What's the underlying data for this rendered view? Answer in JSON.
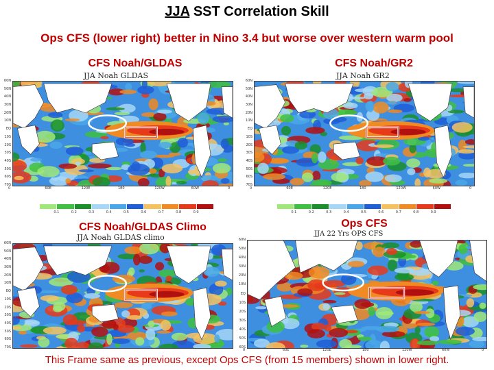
{
  "title_prefix": "JJA",
  "title_rest": " SST Correlation Skill",
  "subtitle": "Ops CFS (lower right) better in Nino 3.4 but worse over western warm pool",
  "footer": "This Frame same as previous, except Ops CFS (from 15 members) shown in lower right.",
  "panels": [
    {
      "label": "CFS Noah/GLDAS",
      "map_title": "JJA Noah GLDAS"
    },
    {
      "label": "CFS Noah/GR2",
      "map_title": "JJA Noah GR2"
    },
    {
      "label": "CFS Noah/GLDAS Climo",
      "map_title": "JJA Noah GLDAS climo"
    },
    {
      "label": "Ops CFS",
      "map_title": "JJA 22 Yrs OPS CFS"
    }
  ],
  "lat_ticks_small": [
    "60N",
    "50N",
    "40N",
    "30N",
    "20N",
    "10N",
    "EQ",
    "10S",
    "20S",
    "30S",
    "40S",
    "50S",
    "60S",
    "70S"
  ],
  "lat_ticks_ops": [
    "60N",
    "50N",
    "40N",
    "30N",
    "20N",
    "10N",
    "EQ",
    "10S",
    "20S",
    "30S",
    "40S",
    "50S",
    "60S"
  ],
  "lon_ticks": [
    "0",
    "60E",
    "120E",
    "180",
    "120W",
    "60W",
    "0"
  ],
  "colorbar_labels": [
    "0.1",
    "0.2",
    "0.3",
    "0.4",
    "0.5",
    "0.6",
    "0.7",
    "0.8",
    "0.9"
  ],
  "colorbar_colors": [
    "#a0e87a",
    "#40c040",
    "#1a8f2a",
    "#a6d7f7",
    "#4aa8e8",
    "#1e5ed6",
    "#f6c260",
    "#f08a22",
    "#e63a1a",
    "#b01010"
  ],
  "annotation_colors": {
    "ellipse": "#ffffff",
    "box": "#ffffff",
    "box_edge": "#d02020"
  }
}
